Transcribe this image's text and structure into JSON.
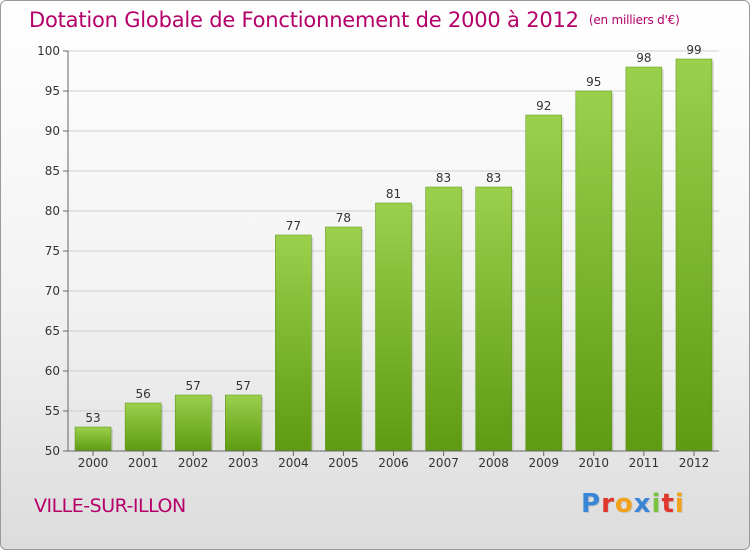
{
  "header": {
    "title": "Dotation Globale de Fonctionnement de 2000 à 2012",
    "subtitle": "(en milliers d'€)"
  },
  "footer": {
    "commune": "VILLE-SUR-ILLON",
    "logo": "Proxiti",
    "logo_colors": [
      "#3a86d6",
      "#e0362c",
      "#f2a11a",
      "#3a86d6",
      "#7cc242",
      "#e0362c",
      "#f2a11a"
    ]
  },
  "colors": {
    "bar_top": "#9bd04c",
    "bar_bottom": "#5e9a12",
    "title": "#b5006a",
    "grid": "#cfcfcf"
  },
  "chart_data": {
    "type": "bar",
    "categories": [
      "2000",
      "2001",
      "2002",
      "2003",
      "2004",
      "2005",
      "2006",
      "2007",
      "2008",
      "2009",
      "2010",
      "2011",
      "2012"
    ],
    "values": [
      53,
      56,
      57,
      57,
      77,
      78,
      81,
      83,
      83,
      92,
      95,
      98,
      99
    ],
    "ylim": [
      50,
      100
    ],
    "yticks": [
      50,
      55,
      60,
      65,
      70,
      75,
      80,
      85,
      90,
      95,
      100
    ],
    "grid": true,
    "title": "Dotation Globale de Fonctionnement de 2000 à 2012",
    "subtitle": "(en milliers d'€)",
    "xlabel": "",
    "ylabel": ""
  }
}
